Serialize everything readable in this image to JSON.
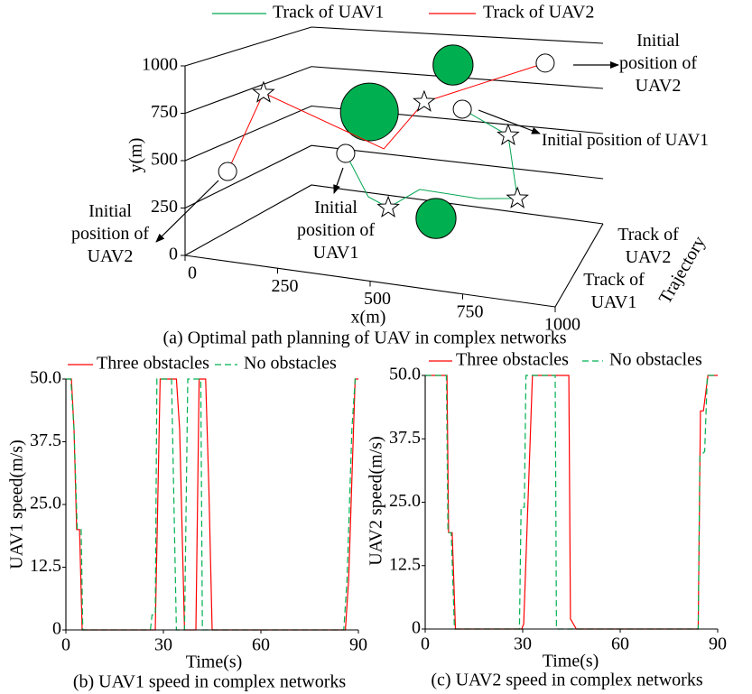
{
  "chart_data": [
    {
      "type": "trajectory",
      "caption": "(a) Optimal path planning of UAV in complex networks",
      "xlabel": "x(m)",
      "ylabel": "y(m)",
      "zlabel": "Trajectory",
      "zcategories": [
        "Track of UAV1",
        "Track of UAV2"
      ],
      "xlim": [
        0,
        1000
      ],
      "ylim": [
        0,
        1000
      ],
      "xticks": [
        0,
        250,
        500,
        750,
        1000
      ],
      "yticks": [
        0,
        250,
        500,
        750,
        1000
      ],
      "series": [
        {
          "name": "Track of UAV1",
          "color": "#00a651",
          "x": [
            434,
            495,
            549,
            634,
            793,
            898,
            873,
            749
          ],
          "y": [
            656,
            444,
            401,
            520,
            515,
            544,
            870,
            975
          ],
          "markers": [
            "circle",
            null,
            "star",
            null,
            null,
            "star",
            "star",
            "circle"
          ]
        },
        {
          "name": "Track of UAV2",
          "color": "#ff0000",
          "x": [
            115,
            212,
            537,
            646,
            973
          ],
          "y": [
            474,
            915,
            708,
            985,
            1279
          ],
          "markers": [
            "circle",
            "star",
            null,
            "star",
            "circle"
          ]
        }
      ],
      "obstacles": {
        "color": "#00b050",
        "x": [
          724,
          498,
          678
        ],
        "y": [
          1201,
          892,
          379
        ],
        "r": [
          54,
          78,
          54
        ]
      },
      "annotations": [
        "Initial position of UAV2",
        "Initial position of UAV1",
        "Initial position of UAV2",
        "Initial position of UAV1"
      ]
    },
    {
      "type": "line",
      "caption": "(b) UAV1 speed in complex networks",
      "xlabel": "Time(s)",
      "ylabel": "UAV1 speed(m/s)",
      "xlim": [
        0,
        90
      ],
      "ylim": [
        0,
        50
      ],
      "xticks": [
        0,
        30,
        60,
        90
      ],
      "yticks": [
        0,
        12.5,
        {
          "value": 25,
          "label": "25.0"
        },
        37.5,
        {
          "value": 50,
          "label": "50.0"
        }
      ],
      "series": [
        {
          "name": "Three obstacles",
          "color": "#ff0000",
          "dashed": false,
          "x": [
            0,
            1.7,
            2.5,
            3.3,
            4.2,
            5,
            27.5,
            29,
            34,
            35,
            36.5,
            40,
            41,
            43,
            44,
            45,
            86,
            87,
            88.5,
            89,
            90
          ],
          "values": [
            50,
            50,
            40,
            20,
            20,
            0,
            0,
            50,
            50,
            40,
            0,
            0,
            50,
            50,
            28,
            0,
            0,
            10,
            40,
            50,
            50
          ]
        },
        {
          "name": "No obstacles",
          "color": "#00b050",
          "dashed": true,
          "x": [
            0,
            1.5,
            2.5,
            3.5,
            4.7,
            5.2,
            26,
            26.5,
            27.5,
            28,
            32.5,
            34,
            36.5,
            37.5,
            41.5,
            42,
            85.5,
            86.5,
            88,
            89,
            90
          ],
          "values": [
            50,
            50,
            40,
            20,
            20,
            0,
            0,
            3,
            3,
            50,
            50,
            0,
            0,
            50,
            50,
            0,
            0,
            10,
            40,
            50,
            50
          ]
        }
      ]
    },
    {
      "type": "line",
      "caption": "(c) UAV2 speed in complex networks",
      "xlabel": "Time(s)",
      "ylabel": "UAV2 speed(m/s)",
      "xlim": [
        0,
        90
      ],
      "ylim": [
        0,
        50
      ],
      "xticks": [
        0,
        30,
        60,
        90
      ],
      "yticks": [
        0,
        12.5,
        {
          "value": 25,
          "label": "25.0"
        },
        37.5,
        {
          "value": 50,
          "label": "50.0"
        }
      ],
      "series": [
        {
          "name": "Three obstacles",
          "color": "#ff0000",
          "dashed": false,
          "x": [
            0,
            6.7,
            7.2,
            8.3,
            9.3,
            29.7,
            30.3,
            33,
            44.2,
            44.7,
            46.5,
            84,
            84.7,
            85.6,
            87,
            90
          ],
          "values": [
            50,
            50,
            19,
            19,
            0,
            0,
            1,
            50,
            50,
            2,
            0,
            0,
            43,
            43,
            50,
            50
          ]
        },
        {
          "name": "No obstacles",
          "color": "#00b050",
          "dashed": true,
          "x": [
            0,
            6.5,
            7,
            8,
            9,
            29,
            29.5,
            30.5,
            31,
            40,
            40.4,
            84,
            84.5,
            86,
            86.8,
            90
          ],
          "values": [
            50,
            50,
            19,
            19,
            0,
            0,
            24,
            24,
            50,
            50,
            0,
            0,
            34,
            35,
            50,
            50
          ]
        }
      ]
    }
  ]
}
